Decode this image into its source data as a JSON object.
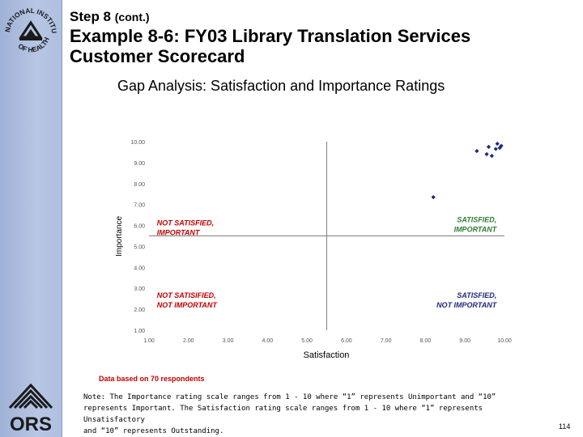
{
  "header": {
    "step": "Step 8",
    "step_sub": "(cont.)",
    "title_line1": "Example 8-6: FY03 Library Translation Services",
    "title_line2": "Customer Scorecard"
  },
  "logos": {
    "nih_text": "NATIONAL INSTITUTES OF HEALTH",
    "ors_text": "ORS"
  },
  "chart_data": {
    "type": "scatter",
    "title": "Gap Analysis:  Satisfaction and Importance Ratings",
    "xlabel": "Satisfaction",
    "ylabel": "Importance",
    "xlim": [
      1.0,
      10.0
    ],
    "ylim": [
      1.0,
      10.0
    ],
    "ticks": [
      "1.00",
      "2.00",
      "3.00",
      "4.00",
      "5.00",
      "6.00",
      "7.00",
      "8.00",
      "9.00",
      "10.00"
    ],
    "divider": 5.5,
    "points": [
      {
        "x": 8.2,
        "y": 7.35
      },
      {
        "x": 9.3,
        "y": 9.55
      },
      {
        "x": 9.6,
        "y": 9.75
      },
      {
        "x": 9.55,
        "y": 9.4
      },
      {
        "x": 9.68,
        "y": 9.32
      },
      {
        "x": 9.78,
        "y": 9.65
      },
      {
        "x": 9.88,
        "y": 9.7
      },
      {
        "x": 9.92,
        "y": 9.8
      },
      {
        "x": 9.82,
        "y": 9.9
      }
    ],
    "quadrants": {
      "top_left": [
        "NOT SATISFIED,",
        "IMPORTANT"
      ],
      "top_right": [
        "SATISFIED,",
        "IMPORTANT"
      ],
      "bottom_left": [
        "NOT SATISIFIED,",
        "NOT IMPORTANT"
      ],
      "bottom_right": [
        "SATISFIED,",
        "NOT IMPORTANT"
      ]
    },
    "colors": {
      "points": "#1f2a7a",
      "not_satisfied": "#c00000",
      "satisfied_important": "#2e7d32",
      "satisfied_not_important": "#1f2a7a",
      "axis": "#7f7f7f"
    }
  },
  "data_note": "Data based on 70 respondents",
  "note_lines": [
    "Note: The Importance rating scale ranges  from 1 - 10 where “1” represents Unimportant and “10”",
    "represents Important. The Satisfaction rating scale ranges  from 1 - 10 where “1” represents Unsatisfactory",
    "and “10” represents Outstanding."
  ],
  "page_number": "114"
}
